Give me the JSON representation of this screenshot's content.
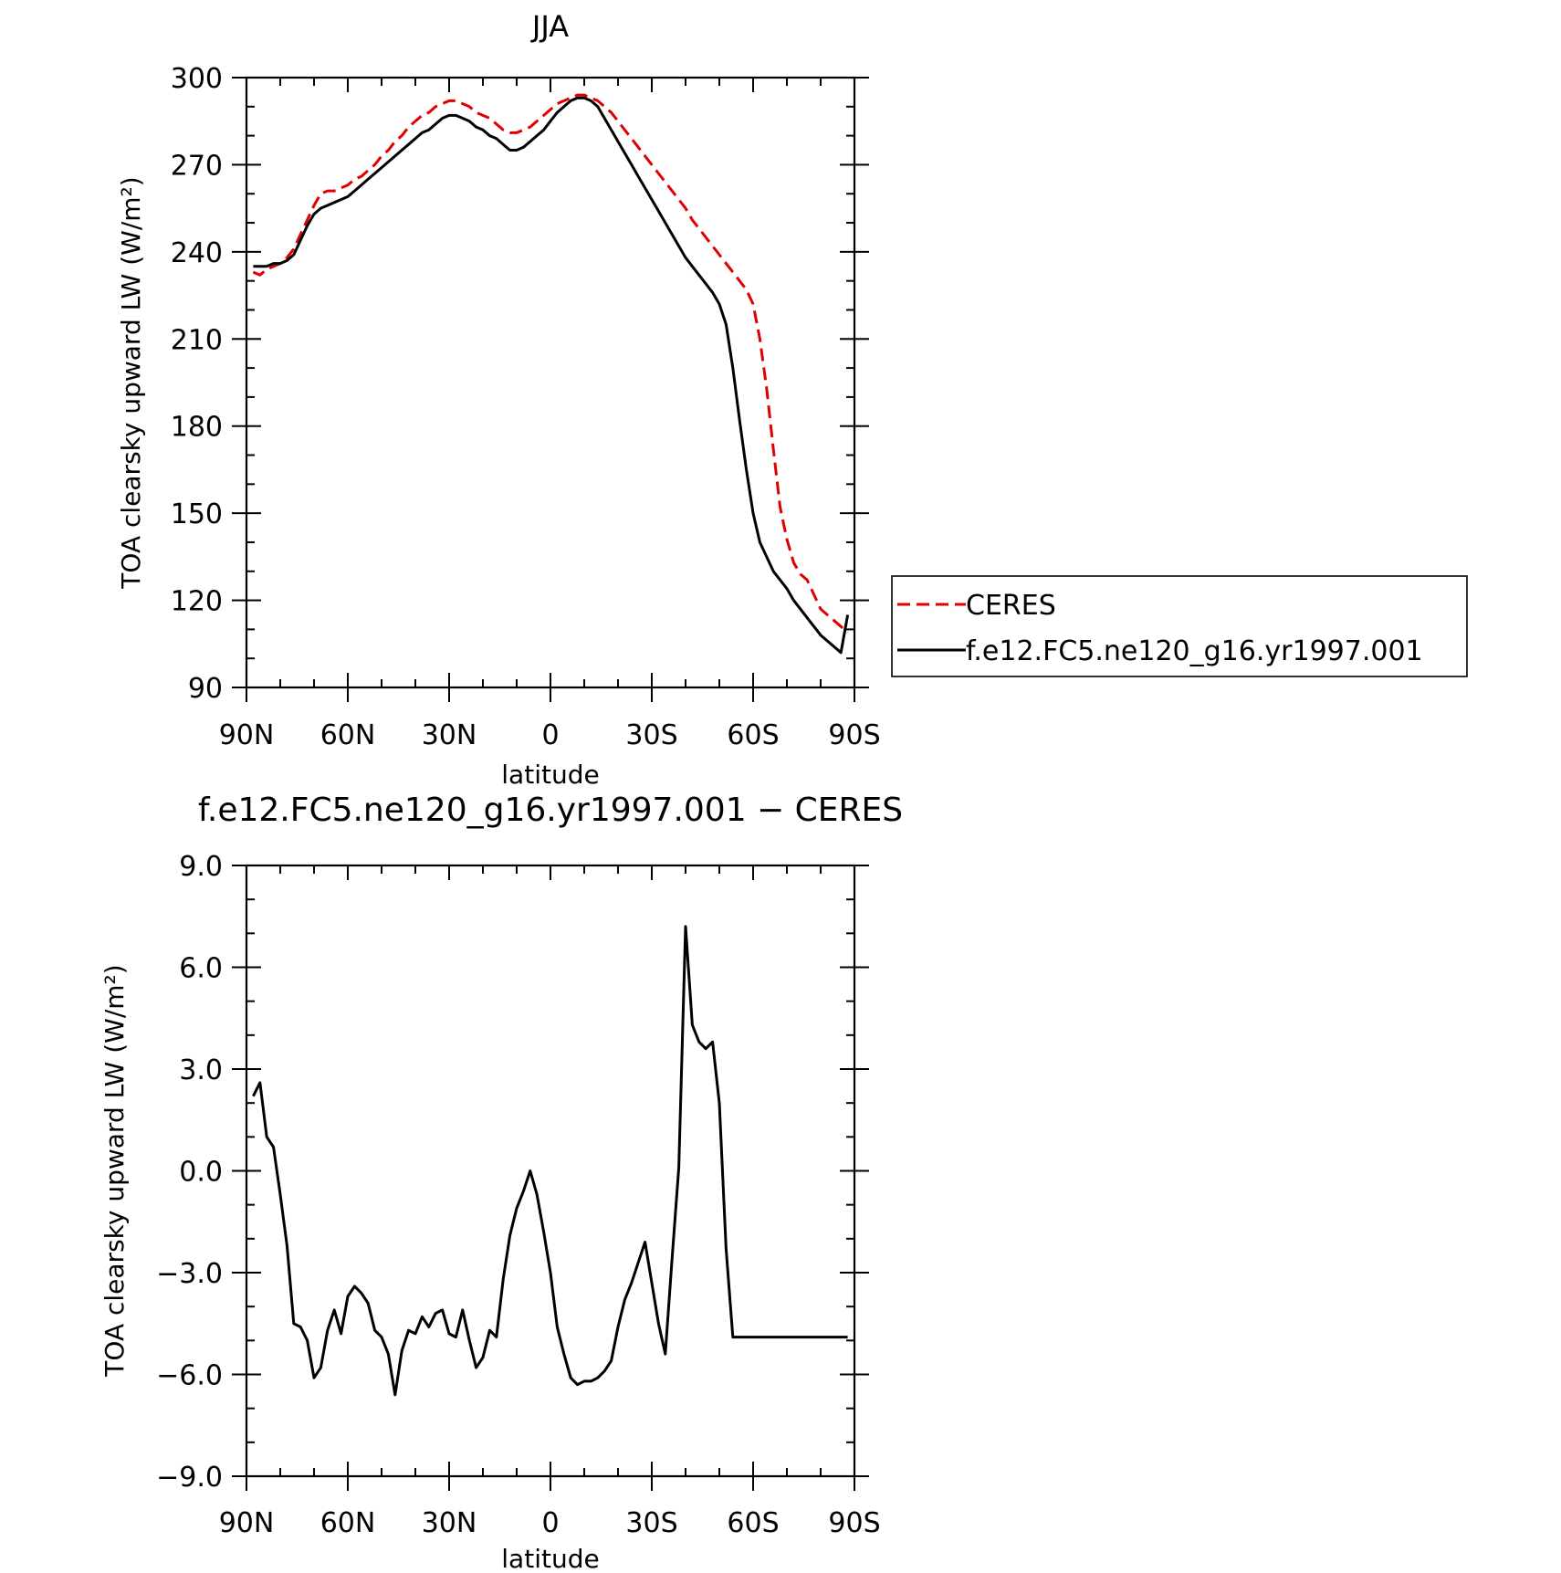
{
  "chart_data": [
    {
      "type": "line",
      "title": "JJA",
      "xlabel": "latitude",
      "ylabel": "TOA clearsky upward LW (W/m²)",
      "xlim": [
        90,
        -90
      ],
      "ylim": [
        90,
        300
      ],
      "yticks": [
        "90",
        "120",
        "150",
        "180",
        "210",
        "240",
        "270",
        "300"
      ],
      "xticks": [
        "90N",
        "60N",
        "30N",
        "0",
        "30S",
        "60S",
        "90S"
      ],
      "grid": false,
      "legend_position": "right",
      "legend": [
        "CERES",
        "f.e12.FC5.ne120_g16.yr1997.001"
      ],
      "series": [
        {
          "name": "CERES",
          "color": "#e00000",
          "dash": "dashed",
          "x": [
            88,
            86,
            84,
            82,
            80,
            78,
            76,
            74,
            72,
            70,
            68,
            66,
            64,
            62,
            60,
            58,
            56,
            54,
            52,
            50,
            48,
            46,
            44,
            42,
            40,
            38,
            36,
            34,
            32,
            30,
            28,
            26,
            24,
            22,
            20,
            18,
            16,
            14,
            12,
            10,
            8,
            6,
            4,
            2,
            0,
            -2,
            -4,
            -6,
            -8,
            -10,
            -12,
            -14,
            -16,
            -18,
            -20,
            -22,
            -24,
            -26,
            -28,
            -30,
            -32,
            -34,
            -36,
            -38,
            -40,
            -42,
            -44,
            -46,
            -48,
            -50,
            -52,
            -54,
            -56,
            -58,
            -60,
            -62,
            -64,
            -66,
            -68,
            -70,
            -72,
            -74,
            -76,
            -78,
            -80,
            -82,
            -84,
            -86,
            -88
          ],
          "y": [
            233,
            232,
            234,
            235,
            236,
            238,
            241,
            246,
            251,
            256,
            260,
            261,
            261,
            262,
            263,
            265,
            266,
            268,
            270,
            273,
            275,
            278,
            280,
            283,
            285,
            287,
            288,
            290,
            291,
            292,
            292,
            291,
            290,
            288,
            287,
            286,
            284,
            282,
            281,
            281,
            282,
            283,
            285,
            287,
            289,
            291,
            292,
            293,
            294,
            294,
            293,
            292,
            290,
            288,
            285,
            282,
            279,
            276,
            273,
            270,
            267,
            264,
            261,
            258,
            255,
            251,
            248,
            245,
            242,
            239,
            236,
            233,
            230,
            227,
            222,
            210,
            193,
            172,
            152,
            141,
            133,
            129,
            127,
            122,
            117,
            115,
            113,
            111,
            109
          ]
        },
        {
          "name": "f.e12.FC5.ne120_g16.yr1997.001",
          "color": "#000000",
          "dash": "solid",
          "x": [
            88,
            86,
            84,
            82,
            80,
            78,
            76,
            74,
            72,
            70,
            68,
            66,
            64,
            62,
            60,
            58,
            56,
            54,
            52,
            50,
            48,
            46,
            44,
            42,
            40,
            38,
            36,
            34,
            32,
            30,
            28,
            26,
            24,
            22,
            20,
            18,
            16,
            14,
            12,
            10,
            8,
            6,
            4,
            2,
            0,
            -2,
            -4,
            -6,
            -8,
            -10,
            -12,
            -14,
            -16,
            -18,
            -20,
            -22,
            -24,
            -26,
            -28,
            -30,
            -32,
            -34,
            -36,
            -38,
            -40,
            -42,
            -44,
            -46,
            -48,
            -50,
            -52,
            -54,
            -56,
            -58,
            -60,
            -62,
            -64,
            -66,
            -68,
            -70,
            -72,
            -74,
            -76,
            -78,
            -80,
            -82,
            -84,
            -86,
            -88
          ],
          "y": [
            235,
            235,
            235,
            236,
            236,
            237,
            239,
            244,
            249,
            253,
            255,
            256,
            257,
            258,
            259,
            261,
            263,
            265,
            267,
            269,
            271,
            273,
            275,
            277,
            279,
            281,
            282,
            284,
            286,
            287,
            287,
            286,
            285,
            283,
            282,
            280,
            279,
            277,
            275,
            275,
            276,
            278,
            280,
            282,
            285,
            288,
            290,
            292,
            293,
            293,
            292,
            290,
            286,
            282,
            278,
            274,
            270,
            266,
            262,
            258,
            254,
            250,
            246,
            242,
            238,
            235,
            232,
            229,
            226,
            222,
            215,
            200,
            182,
            165,
            150,
            140,
            135,
            130,
            127,
            124,
            120,
            117,
            114,
            111,
            108,
            106,
            104,
            102,
            115
          ]
        }
      ]
    },
    {
      "type": "line",
      "title": "f.e12.FC5.ne120_g16.yr1997.001 − CERES",
      "xlabel": "latitude",
      "ylabel": "TOA clearsky upward LW (W/m²)",
      "xlim": [
        90,
        -90
      ],
      "ylim": [
        -9,
        9
      ],
      "yticks": [
        "−9.0",
        "−6.0",
        "−3.0",
        "0.0",
        "3.0",
        "6.0",
        "9.0"
      ],
      "xticks": [
        "90N",
        "60N",
        "30N",
        "0",
        "30S",
        "60S",
        "90S"
      ],
      "grid": false,
      "series": [
        {
          "color": "#000000",
          "dash": "solid",
          "x": [
            88,
            86,
            84,
            82,
            80,
            78,
            76,
            74,
            72,
            70,
            68,
            66,
            64,
            62,
            60,
            58,
            56,
            54,
            52,
            50,
            48,
            46,
            44,
            42,
            40,
            38,
            36,
            34,
            32,
            30,
            28,
            26,
            24,
            22,
            20,
            18,
            16,
            14,
            12,
            10,
            8,
            6,
            4,
            2,
            0,
            -2,
            -4,
            -6,
            -8,
            -10,
            -12,
            -14,
            -16,
            -18,
            -20,
            -22,
            -24,
            -26,
            -28,
            -30,
            -32,
            -34,
            -36,
            -38,
            -40,
            -42,
            -44,
            -46,
            -48,
            -50,
            -52,
            -54,
            -56,
            -58,
            -60,
            -62,
            -64,
            -66,
            -68,
            -70,
            -72,
            -74,
            -76,
            -78,
            -80,
            -82,
            -84,
            -86,
            -88
          ],
          "y": [
            2.2,
            2.6,
            1.0,
            0.7,
            -0.7,
            -2.2,
            -4.5,
            -4.6,
            -5.0,
            -6.1,
            -5.8,
            -4.7,
            -4.1,
            -4.8,
            -3.7,
            -3.4,
            -3.6,
            -3.9,
            -4.7,
            -4.9,
            -5.4,
            -6.6,
            -5.3,
            -4.7,
            -4.8,
            -4.3,
            -4.6,
            -4.2,
            -4.1,
            -4.8,
            -4.9,
            -4.1,
            -5.0,
            -5.8,
            -5.5,
            -4.7,
            -4.9,
            -3.2,
            -1.9,
            -1.1,
            -0.6,
            0.0,
            -0.7,
            -1.8,
            -3.0,
            -4.6,
            -5.4,
            -6.1,
            -6.3,
            -6.2,
            -6.2,
            -6.1,
            -5.9,
            -5.6,
            -4.6,
            -3.8,
            -3.3,
            -2.7,
            -2.1,
            -3.3,
            -4.5,
            -5.4,
            -2.6,
            0.1,
            7.2,
            4.3,
            3.8,
            3.6,
            3.8,
            2.0,
            -2.3,
            -4.9,
            -4.9,
            -4.9,
            -4.9,
            -4.9,
            -4.9,
            -4.9,
            -4.9,
            -4.9,
            -4.9,
            -4.9,
            -4.9,
            -4.9,
            -4.9,
            -4.9,
            -4.9,
            -4.9,
            -4.9
          ]
        }
      ]
    }
  ]
}
